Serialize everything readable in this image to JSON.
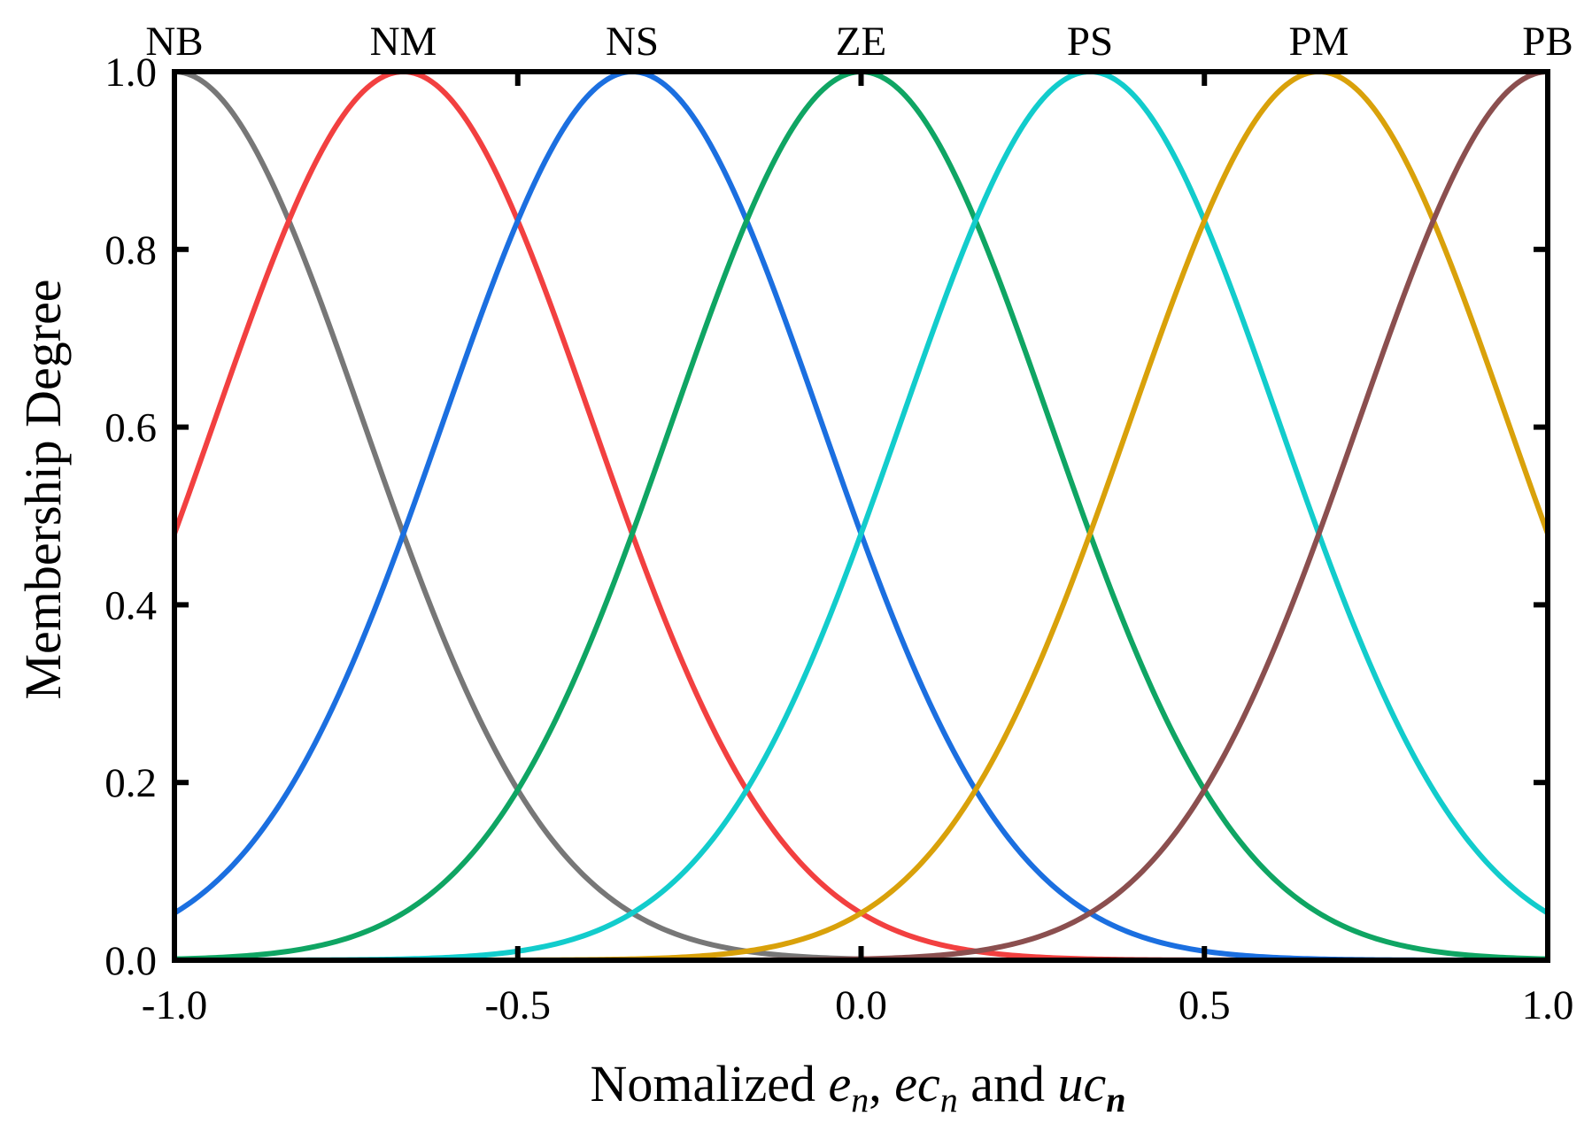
{
  "chart_data": {
    "type": "line",
    "title": "",
    "xlabel": {
      "prefix": "Nomalized ",
      "e": "e",
      "e_sub": "n",
      "sep": ", ",
      "ec": "ec",
      "ec_sub": "n",
      "and": " and ",
      "uc": "uc",
      "uc_sub": "n"
    },
    "ylabel": "Membership Degree",
    "xlim": [
      -1.0,
      1.0
    ],
    "ylim": [
      0.0,
      1.0
    ],
    "xticks": [
      -1.0,
      -0.5,
      0.0,
      0.5,
      1.0
    ],
    "xtick_labels": [
      "-1.0",
      "-0.5",
      "0.0",
      "0.5",
      "1.0"
    ],
    "yticks": [
      0.0,
      0.2,
      0.4,
      0.6,
      0.8,
      1.0
    ],
    "ytick_labels": [
      "0.0",
      "0.2",
      "0.4",
      "0.6",
      "0.8",
      "1.0"
    ],
    "grid": false,
    "membership_function": "gaussian",
    "sigma": 0.2751,
    "series": [
      {
        "name": "NB",
        "center": -1.0,
        "color": "#777777"
      },
      {
        "name": "NM",
        "center": -0.6667,
        "color": "#f24040"
      },
      {
        "name": "NS",
        "center": -0.3333,
        "color": "#1b6fe0"
      },
      {
        "name": "ZE",
        "center": 0.0,
        "color": "#0fa563"
      },
      {
        "name": "PS",
        "center": 0.3333,
        "color": "#12cccc"
      },
      {
        "name": "PM",
        "center": 0.6667,
        "color": "#d9a10a"
      },
      {
        "name": "PB",
        "center": 1.0,
        "color": "#8b4f4f"
      }
    ]
  }
}
